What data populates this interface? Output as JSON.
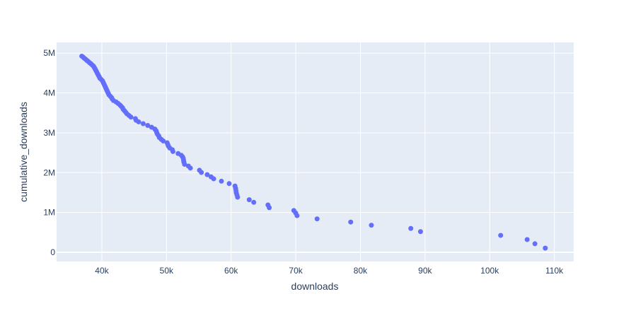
{
  "chart_data": {
    "type": "scatter",
    "xlabel": "downloads",
    "ylabel": "cumulative_downloads",
    "xlim": [
      33000,
      113000
    ],
    "ylim": [
      -230000,
      5270000
    ],
    "x_ticks": [
      {
        "value": 40000,
        "label": "40k"
      },
      {
        "value": 50000,
        "label": "50k"
      },
      {
        "value": 60000,
        "label": "60k"
      },
      {
        "value": 70000,
        "label": "70k"
      },
      {
        "value": 80000,
        "label": "80k"
      },
      {
        "value": 90000,
        "label": "90k"
      },
      {
        "value": 100000,
        "label": "100k"
      },
      {
        "value": 110000,
        "label": "110k"
      }
    ],
    "y_ticks": [
      {
        "value": 0,
        "label": "0"
      },
      {
        "value": 1000000,
        "label": "1M"
      },
      {
        "value": 2000000,
        "label": "2M"
      },
      {
        "value": 3000000,
        "label": "3M"
      },
      {
        "value": 4000000,
        "label": "4M"
      },
      {
        "value": 5000000,
        "label": "5M"
      }
    ],
    "grid": true,
    "colors": {
      "plot_bg": "#e5ecf6",
      "grid": "#ffffff",
      "marker": "#636efa",
      "text": "#2a3f5f"
    },
    "points": [
      [
        108600,
        105000
      ],
      [
        107000,
        215000
      ],
      [
        105800,
        320000
      ],
      [
        101700,
        425000
      ],
      [
        89300,
        520000
      ],
      [
        87800,
        600000
      ],
      [
        81700,
        680000
      ],
      [
        78500,
        760000
      ],
      [
        73300,
        840000
      ],
      [
        70200,
        920000
      ],
      [
        70000,
        985000
      ],
      [
        69700,
        1050000
      ],
      [
        65900,
        1120000
      ],
      [
        65700,
        1190000
      ],
      [
        63500,
        1255000
      ],
      [
        62800,
        1320000
      ],
      [
        61000,
        1385000
      ],
      [
        60900,
        1440000
      ],
      [
        60800,
        1495000
      ],
      [
        60750,
        1550000
      ],
      [
        60700,
        1605000
      ],
      [
        60600,
        1665000
      ],
      [
        59700,
        1725000
      ],
      [
        58500,
        1785000
      ],
      [
        57300,
        1845000
      ],
      [
        56900,
        1895000
      ],
      [
        56300,
        1950000
      ],
      [
        55400,
        2005000
      ],
      [
        55100,
        2060000
      ],
      [
        53700,
        2115000
      ],
      [
        53400,
        2165000
      ],
      [
        52800,
        2210000
      ],
      [
        52700,
        2260000
      ],
      [
        52650,
        2305000
      ],
      [
        52600,
        2355000
      ],
      [
        52500,
        2395000
      ],
      [
        52300,
        2435000
      ],
      [
        51800,
        2480000
      ],
      [
        51000,
        2530000
      ],
      [
        50900,
        2575000
      ],
      [
        50500,
        2620000
      ],
      [
        50300,
        2665000
      ],
      [
        50200,
        2710000
      ],
      [
        50100,
        2750000
      ],
      [
        49500,
        2795000
      ],
      [
        49200,
        2835000
      ],
      [
        48900,
        2880000
      ],
      [
        48800,
        2925000
      ],
      [
        48600,
        2965000
      ],
      [
        48500,
        3005000
      ],
      [
        48400,
        3050000
      ],
      [
        48200,
        3095000
      ],
      [
        47700,
        3140000
      ],
      [
        47100,
        3185000
      ],
      [
        46400,
        3230000
      ],
      [
        45700,
        3275000
      ],
      [
        45300,
        3315000
      ],
      [
        45200,
        3355000
      ],
      [
        44500,
        3395000
      ],
      [
        44200,
        3435000
      ],
      [
        43900,
        3475000
      ],
      [
        43700,
        3515000
      ],
      [
        43500,
        3555000
      ],
      [
        43300,
        3590000
      ],
      [
        43200,
        3630000
      ],
      [
        43000,
        3665000
      ],
      [
        42800,
        3700000
      ],
      [
        42500,
        3740000
      ],
      [
        42200,
        3775000
      ],
      [
        41800,
        3810000
      ],
      [
        41600,
        3850000
      ],
      [
        41500,
        3885000
      ],
      [
        41300,
        3920000
      ],
      [
        41100,
        3955000
      ],
      [
        41000,
        3990000
      ],
      [
        40900,
        4025000
      ],
      [
        40800,
        4060000
      ],
      [
        40700,
        4095000
      ],
      [
        40600,
        4130000
      ],
      [
        40500,
        4165000
      ],
      [
        40400,
        4200000
      ],
      [
        40300,
        4235000
      ],
      [
        40200,
        4270000
      ],
      [
        40100,
        4305000
      ],
      [
        39900,
        4340000
      ],
      [
        39700,
        4370000
      ],
      [
        39600,
        4405000
      ],
      [
        39500,
        4435000
      ],
      [
        39400,
        4465000
      ],
      [
        39300,
        4495000
      ],
      [
        39200,
        4530000
      ],
      [
        39100,
        4560000
      ],
      [
        39000,
        4590000
      ],
      [
        38900,
        4620000
      ],
      [
        38800,
        4650000
      ],
      [
        38700,
        4675000
      ],
      [
        38500,
        4705000
      ],
      [
        38300,
        4735000
      ],
      [
        38100,
        4760000
      ],
      [
        37900,
        4790000
      ],
      [
        37700,
        4815000
      ],
      [
        37500,
        4845000
      ],
      [
        37300,
        4870000
      ],
      [
        37100,
        4900000
      ],
      [
        36900,
        4925000
      ]
    ]
  }
}
